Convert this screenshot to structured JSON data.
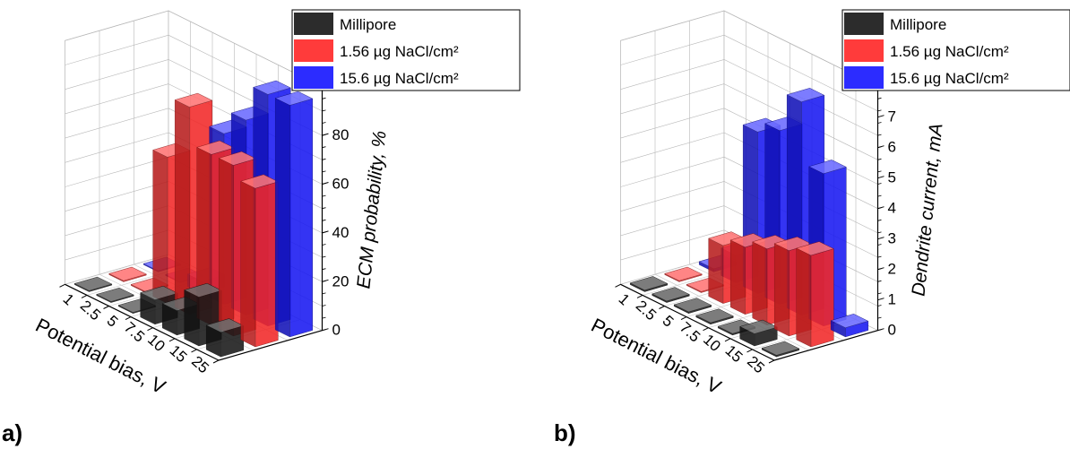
{
  "legend": {
    "entries": [
      "Millipore",
      "1.56 µg NaCl/cm²",
      "15.6 µg NaCl/cm²"
    ]
  },
  "colors": {
    "Millipore": "#1a1a1a",
    "1.56 µg NaCl/cm²": "#ff2a2a",
    "15.6 µg NaCl/cm²": "#1a1aff"
  },
  "chart_data": [
    {
      "type": "bar",
      "panel_label": "a)",
      "xlabel": "Potential bias, V",
      "ylabel": "ECM probability, %",
      "categories": [
        "25",
        "15",
        "10",
        "7.5",
        "5",
        "2.5",
        "1"
      ],
      "z_ticks": [
        "0",
        "20",
        "40",
        "60",
        "80"
      ],
      "ylim": [
        0,
        100
      ],
      "series": [
        {
          "name": "Millipore",
          "values": [
            10,
            20,
            10,
            10,
            0,
            0,
            0
          ]
        },
        {
          "name": "1.56 µg NaCl/cm²",
          "values": [
            65,
            70,
            70,
            85,
            60,
            0,
            0
          ]
        },
        {
          "name": "15.6 µg NaCl/cm²",
          "values": [
            95,
            95,
            80,
            70,
            5,
            0,
            0
          ]
        }
      ]
    },
    {
      "type": "bar",
      "panel_label": "b)",
      "xlabel": "Potential bias, V",
      "ylabel": "Dendrite current, mA",
      "categories": [
        "25",
        "15",
        "10",
        "7.5",
        "5",
        "2.5",
        "1"
      ],
      "z_ticks": [
        "0",
        "1",
        "2",
        "3",
        "4",
        "5",
        "6",
        "7"
      ],
      "ylim": [
        0,
        8
      ],
      "series": [
        {
          "name": "Millipore",
          "values": [
            0.05,
            0.4,
            0.05,
            0.05,
            0.05,
            0.05,
            0.05
          ]
        },
        {
          "name": "1.56 µg NaCl/cm²",
          "values": [
            3.0,
            2.8,
            2.5,
            2.2,
            1.9,
            0,
            0
          ]
        },
        {
          "name": "15.6 µg NaCl/cm²",
          "values": [
            0.3,
            5.0,
            7.0,
            5.7,
            5.3,
            0.9,
            0.1
          ]
        }
      ]
    }
  ]
}
